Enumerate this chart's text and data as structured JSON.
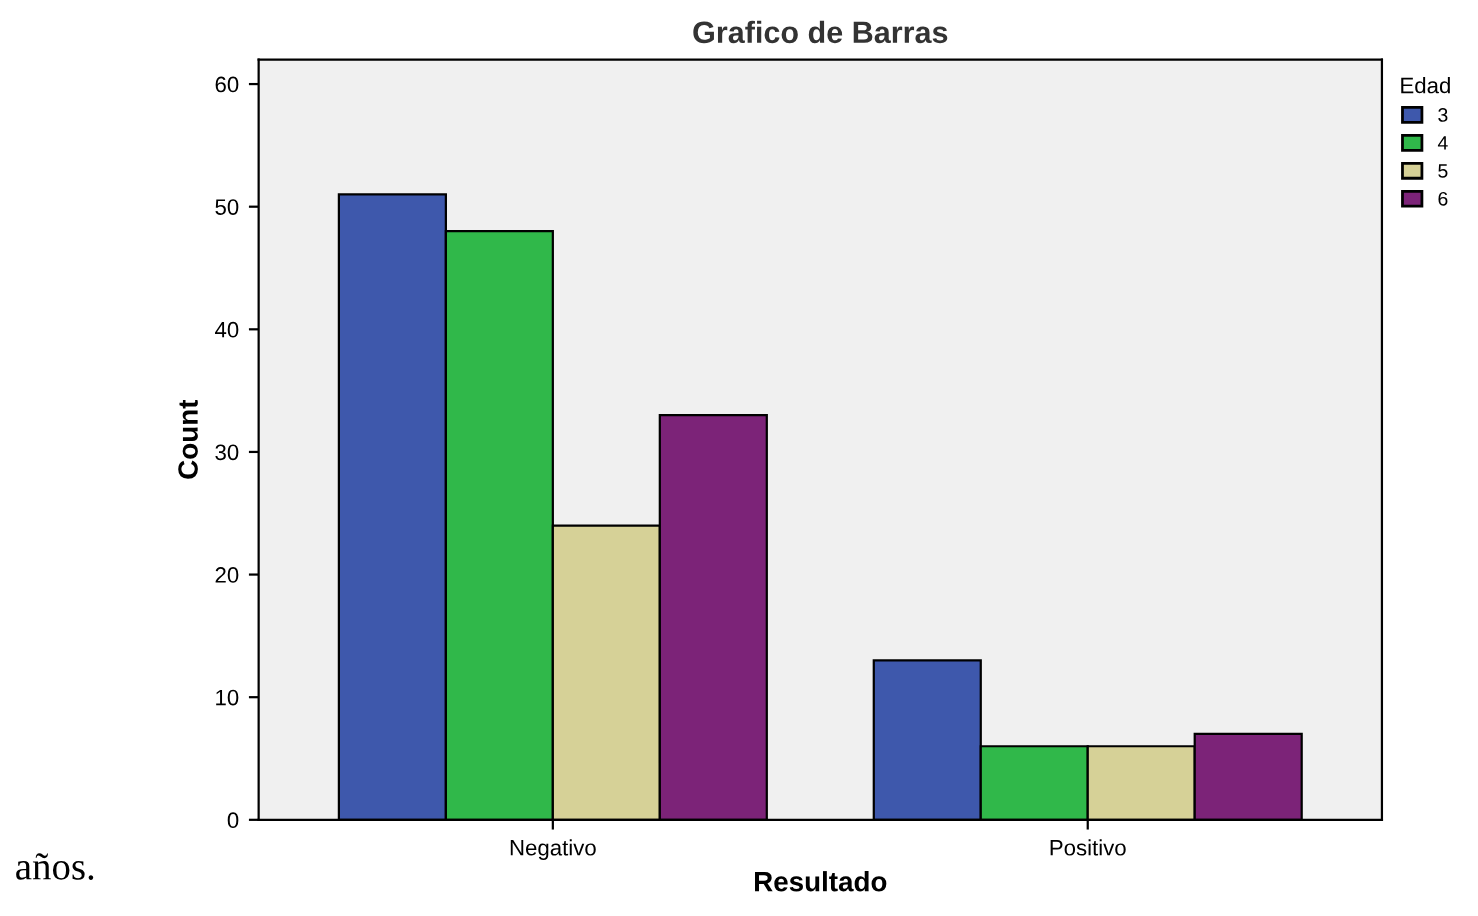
{
  "chart_data": {
    "type": "bar",
    "title": "Grafico de Barras",
    "xlabel": "Resultado",
    "ylabel": "Count",
    "legend_title": "Edad",
    "categories": [
      "Negativo",
      "Positivo"
    ],
    "series": [
      {
        "name": "3",
        "color": "#3e58ac",
        "values": [
          51,
          13
        ]
      },
      {
        "name": "4",
        "color": "#30b84a",
        "values": [
          48,
          6
        ]
      },
      {
        "name": "5",
        "color": "#d6d197",
        "values": [
          24,
          6
        ]
      },
      {
        "name": "6",
        "color": "#7c2378",
        "values": [
          33,
          7
        ]
      }
    ],
    "ylim": [
      0,
      62
    ],
    "yticks": [
      0,
      10,
      20,
      30,
      40,
      50,
      60
    ],
    "grid": false,
    "legend": "top right",
    "annotations": [
      "años."
    ]
  }
}
